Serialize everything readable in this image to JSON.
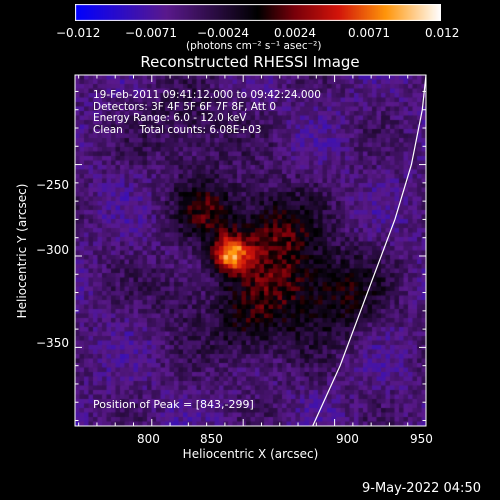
{
  "chart_data": {
    "type": "heatmap",
    "title": "Reconstructed RHESSI Image",
    "xlabel": "Heliocentric X (arcsec)",
    "ylabel": "Heliocentric Y (arcsec)",
    "xlim": [
      758,
      950
    ],
    "ylim": [
      -393,
      -201
    ],
    "x_ticks": [
      800,
      850,
      900,
      950
    ],
    "y_ticks": [
      -250,
      -300,
      -350
    ],
    "x_tick_labels": [
      "800",
      "850",
      "900",
      "950"
    ],
    "y_tick_labels": [
      "−250",
      "−300",
      "−350"
    ],
    "colorbar": {
      "range": [
        -0.012,
        0.012
      ],
      "tick_labels": [
        "−0.012",
        "−0.0071",
        "−0.0024",
        "0.0024",
        "0.0071",
        "0.012"
      ],
      "units": "(photons cm⁻² s⁻¹ asec⁻²)"
    },
    "info_lines": [
      "19-Feb-2011 09:41:12.000 to 09:42:24.000",
      "Detectors: 3F 4F 5F 6F 7F 8F, Att 0",
      "Energy Range: 6.0 - 12.0 keV",
      "Clean     Total counts: 6.08E+03"
    ],
    "peak_label": "Position of Peak = [843,-299]",
    "peak": [
      843,
      -299
    ],
    "sources": [
      {
        "x": 843,
        "y": -299,
        "value": 0.012,
        "sigma": 7
      },
      {
        "x": 830,
        "y": -275,
        "value": 0.0052,
        "sigma": 12
      },
      {
        "x": 866,
        "y": -285,
        "value": 0.0055,
        "sigma": 16
      },
      {
        "x": 872,
        "y": -318,
        "value": 0.0048,
        "sigma": 20
      },
      {
        "x": 905,
        "y": -320,
        "value": 0.004,
        "sigma": 16
      },
      {
        "x": 850,
        "y": -340,
        "value": 0.0035,
        "sigma": 14
      },
      {
        "x": 820,
        "y": -230,
        "value": 0.003,
        "sigma": 16
      },
      {
        "x": 815,
        "y": -320,
        "value": 0.0025,
        "sigma": 12
      }
    ],
    "limb_arc": [
      [
        888,
        -393
      ],
      [
        903,
        -360
      ],
      [
        918,
        -320
      ],
      [
        933,
        -280
      ],
      [
        942,
        -250
      ],
      [
        948,
        -220
      ],
      [
        950,
        -201
      ]
    ],
    "colors": {
      "background": "#000000",
      "text": "#ffffff",
      "limb": "#ffffff"
    },
    "colormap": "blue-purple-red-yellow-white"
  },
  "footer": {
    "date": "9-May-2022 04:50"
  }
}
